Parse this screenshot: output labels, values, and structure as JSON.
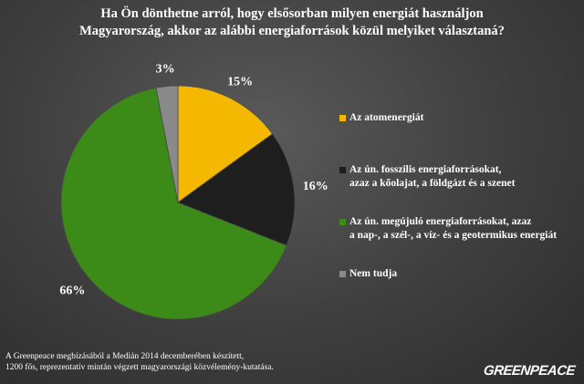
{
  "title_lines": [
    "Ha Ön dönthetne arról, hogy elsősorban milyen energiát használjon",
    "Magyarország, akkor az alábbi energiaforrások közül melyiket választaná?"
  ],
  "chart_data": {
    "type": "pie",
    "title": "Ha Ön dönthetne arról, hogy elsősorban milyen energiát használjon Magyarország, akkor az alábbi energiaforrások közül melyiket választaná?",
    "legend_position": "right",
    "slices": [
      {
        "label": "Az atomenergiát",
        "value": 15,
        "display": "15%",
        "color": "#f5b800"
      },
      {
        "label": "Az ún. fosszilis energiaforrásokat, azaz a kőolajat, a földgázt és a szenet",
        "value": 16,
        "display": "16%",
        "color": "#1e1e1e"
      },
      {
        "label": "Az ún. megújuló energiaforrásokat, azaz a nap-, a szél-, a víz- és a geotermikus energiát",
        "value": 66,
        "display": "66%",
        "color": "#3c8a18"
      },
      {
        "label": "Nem tudja",
        "value": 3,
        "display": "3%",
        "color": "#8a8a8a"
      }
    ]
  },
  "legend": [
    {
      "lines": [
        "Az atomenergiát"
      ],
      "color": "#f5b800"
    },
    {
      "lines": [
        "Az ún. fosszilis energiaforrásokat,",
        "azaz a kőolajat, a földgázt és a szenet"
      ],
      "color": "#1e1e1e"
    },
    {
      "lines": [
        "Az ún. megújuló energiaforrásokat, azaz",
        "a nap-, a szél-, a víz- és a geotermikus energiát"
      ],
      "color": "#3c8a18"
    },
    {
      "lines": [
        "Nem tudja"
      ],
      "color": "#8a8a8a"
    }
  ],
  "footnote_lines": [
    "A Greenpeace megbízásából a Medián 2014 decemberében készített,",
    "1200 fős, reprezentatív mintán végzett magyarországi közvélemény-kutatása."
  ],
  "logo_text": "GREENPEACE"
}
